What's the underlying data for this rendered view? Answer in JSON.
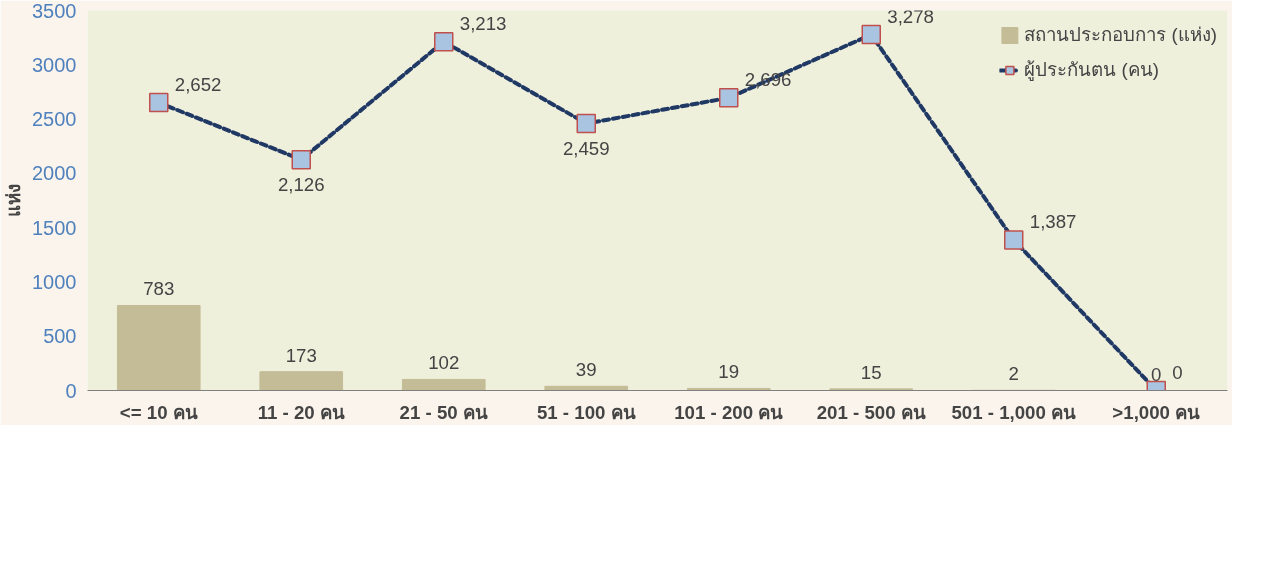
{
  "chart_data": {
    "type": "bar",
    "ylabel": "แห่ง",
    "categories": [
      "<= 10 คน",
      "11 - 20 คน",
      "21 - 50 คน",
      "51 - 100 คน",
      "101 - 200 คน",
      "201 - 500 คน",
      "501 - 1,000 คน",
      ">1,000 คน"
    ],
    "series": [
      {
        "name": "สถานประกอบการ (แห่ง)",
        "type": "bar",
        "color": "#c4bc96",
        "values": [
          783,
          173,
          102,
          39,
          19,
          15,
          2,
          0
        ],
        "value_labels": [
          "783",
          "173",
          "102",
          "39",
          "19",
          "15",
          "2",
          "0"
        ]
      },
      {
        "name": "ผู้ประกันตน (คน)",
        "type": "line",
        "color": "#1f3864",
        "marker": "square",
        "line_style": "dashed",
        "values": [
          2652,
          2126,
          3213,
          2459,
          2696,
          3278,
          1387,
          0
        ],
        "value_labels": [
          "2,652",
          "2,126",
          "3,213",
          "2,459",
          "2,696",
          "3,278",
          "1,387",
          "0"
        ]
      }
    ],
    "ylim": [
      0,
      3500
    ],
    "yticks": [
      0,
      500,
      1000,
      1500,
      2000,
      2500,
      3000,
      3500
    ],
    "legend": "top right",
    "grid": false
  }
}
